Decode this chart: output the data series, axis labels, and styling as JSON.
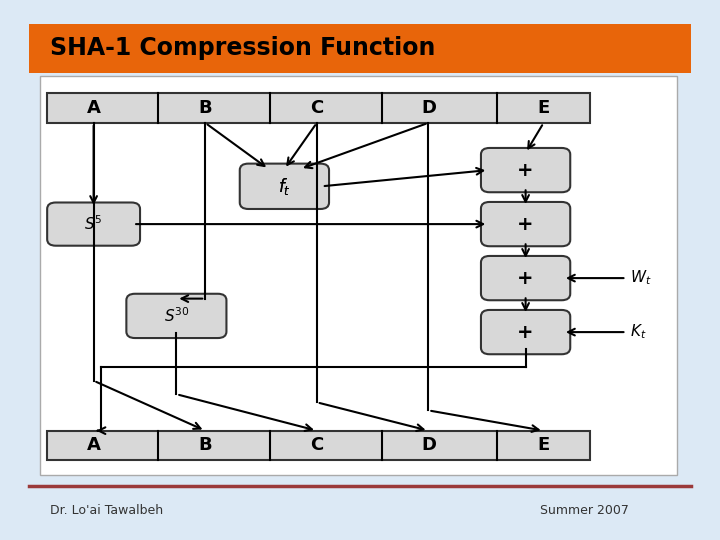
{
  "title": "SHA-1 Compression Function",
  "title_color": "#E8650A",
  "footer_left": "Dr. Lo'ai Tawalbeh",
  "footer_right": "Summer 2007",
  "footer_line_color": "#9B3A3A",
  "bg_color": "#DCE9F5",
  "box_fill": "#D8D8D8",
  "box_edge": "#333333",
  "registers": [
    "A",
    "B",
    "C",
    "D",
    "E"
  ]
}
